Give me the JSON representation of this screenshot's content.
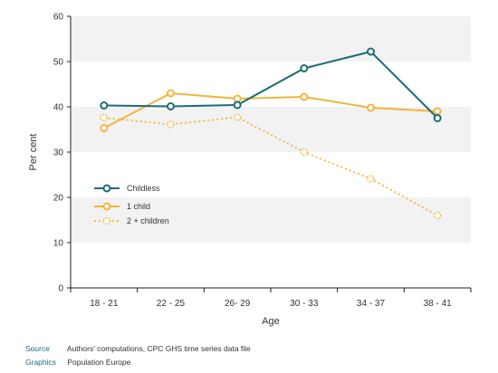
{
  "chart_data": {
    "type": "line",
    "title": "",
    "xlabel": "Age",
    "ylabel": "Per cent",
    "categories": [
      "18 - 21",
      "22 - 25",
      "26- 29",
      "30 - 33",
      "34 - 37",
      "38 - 41"
    ],
    "ylim": [
      0,
      60
    ],
    "yticks": [
      0,
      10,
      20,
      30,
      40,
      50,
      60
    ],
    "grid": "alternating horizontal bands",
    "legend_position": "left-middle",
    "series": [
      {
        "name": "Childless",
        "values": [
          40.3,
          40.1,
          40.4,
          48.5,
          52.2,
          37.5
        ],
        "color": "#1d6b78",
        "style": "solid"
      },
      {
        "name": "1 child",
        "values": [
          35.3,
          43.0,
          41.8,
          42.2,
          39.8,
          39.0
        ],
        "color": "#f2b53a",
        "style": "solid"
      },
      {
        "name": "2 + children",
        "values": [
          37.6,
          36.1,
          37.7,
          30.0,
          24.1,
          16.0
        ],
        "color": "#f2b53a",
        "style": "dotted"
      }
    ]
  },
  "footer": {
    "source_label": "Source",
    "source_text": "Authors' computations, CPC GHS time series data file",
    "graphics_label": "Graphics",
    "graphics_text": "Population Europe"
  }
}
